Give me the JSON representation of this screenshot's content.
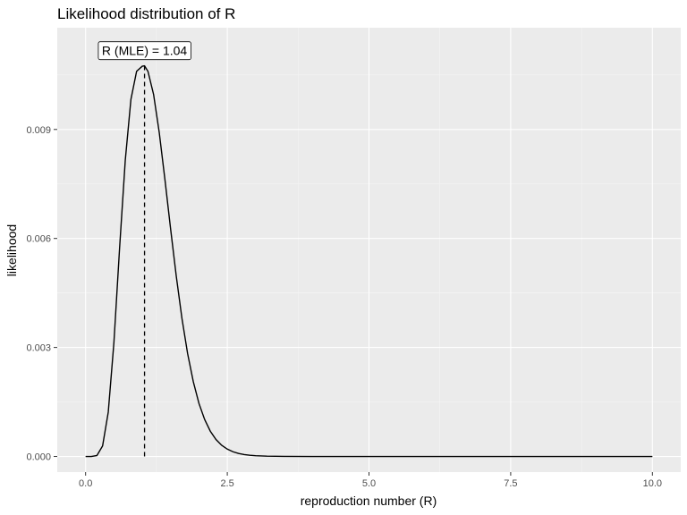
{
  "chart_data": {
    "type": "line",
    "title": "Likelihood distribution of R",
    "xlabel": "reproduction number (R)",
    "ylabel": "likelihood",
    "xlim": [
      -0.5,
      10.5
    ],
    "ylim": [
      -0.00043,
      0.0118
    ],
    "x_ticks": [
      0,
      2.5,
      5,
      7.5,
      10
    ],
    "x_tick_labels": [
      "0.0",
      "2.5",
      "5.0",
      "7.5",
      "10.0"
    ],
    "y_ticks": [
      0,
      0.003,
      0.006,
      0.009
    ],
    "y_tick_labels": [
      "0.000",
      "0.003",
      "0.006",
      "0.009"
    ],
    "x_minor_ticks": [
      1.25,
      3.75,
      6.25,
      8.75
    ],
    "y_minor_ticks": [
      0.0015,
      0.0045,
      0.0075,
      0.0105
    ],
    "grid": true,
    "background": "#ebebeb",
    "grid_major_color": "#ffffff",
    "grid_minor_color": "#f5f5f5",
    "line_color": "#000000",
    "series": [
      {
        "x": [
          0.0,
          0.1,
          0.2,
          0.3,
          0.4,
          0.5,
          0.6,
          0.7,
          0.8,
          0.9,
          1.0,
          1.04,
          1.1,
          1.2,
          1.3,
          1.4,
          1.5,
          1.6,
          1.7,
          1.8,
          1.9,
          2.0,
          2.1,
          2.2,
          2.3,
          2.4,
          2.5,
          2.6,
          2.7,
          2.8,
          2.9,
          3.0,
          3.2,
          3.5,
          4.0,
          5.0,
          6.0,
          7.0,
          8.0,
          9.0,
          10.0
        ],
        "y": [
          0.0,
          2e-07,
          2.62e-05,
          0.000289,
          0.00122,
          0.00314,
          0.00574,
          0.00815,
          0.00983,
          0.0106,
          0.01074,
          0.01075,
          0.0106,
          0.00996,
          0.00891,
          0.00762,
          0.00626,
          0.00496,
          0.0038,
          0.00283,
          0.00206,
          0.00146,
          0.00102,
          0.000696,
          0.000467,
          0.000309,
          0.000202,
          0.00013,
          8.31e-05,
          5.25e-05,
          3.29e-05,
          2.05e-05,
          7.8e-06,
          1.7e-06,
          1e-07,
          0.0,
          0.0,
          0.0,
          0.0,
          0.0,
          0.0
        ]
      }
    ],
    "mle": {
      "x": 1.04,
      "y": 0.01075,
      "label": "R (MLE) = 1.04"
    }
  }
}
